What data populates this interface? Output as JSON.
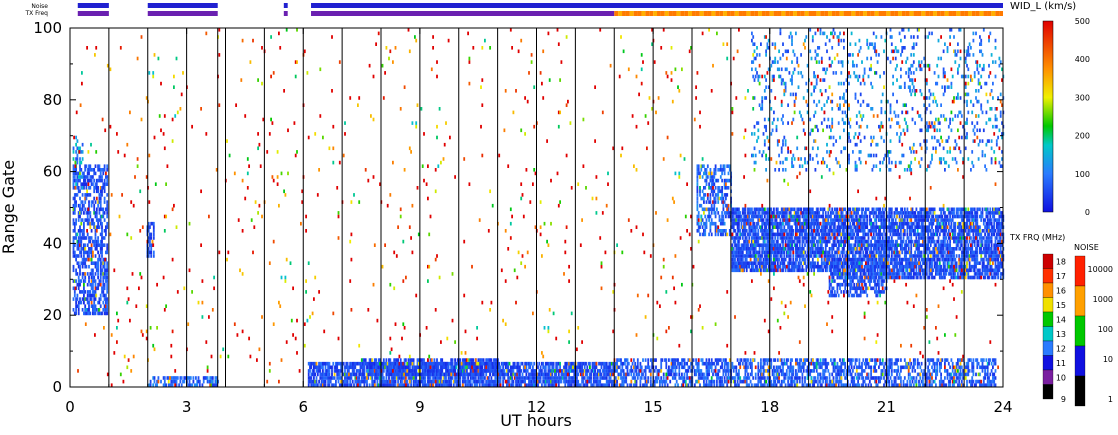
{
  "chart_data": {
    "type": "heatmap",
    "parameter": "WID_L (km/s)",
    "xlabel": "UT hours",
    "ylabel": "Range Gate",
    "xlim": [
      0,
      24
    ],
    "ylim": [
      0,
      100
    ],
    "x_ticks": [
      "0",
      "3",
      "6",
      "9",
      "12",
      "15",
      "18",
      "21",
      "24"
    ],
    "y_ticks": [
      "0",
      "20",
      "40",
      "60",
      "80",
      "100"
    ],
    "scan_boundaries_ut": [
      1.0,
      2.0,
      3.0,
      3.8,
      4.0,
      5.0,
      6.0,
      7.0,
      8.0,
      9.0,
      10.0,
      11.0,
      12.0,
      13.0,
      14.0,
      15.0,
      16.0,
      17.0,
      18.0,
      19.0,
      20.0,
      21.0,
      22.0,
      23.0
    ],
    "top_bars": {
      "noise_label": "Noise",
      "txfreq_label": "TX Freq",
      "noise_segments": [
        [
          0.2,
          1.0
        ],
        [
          2.0,
          3.8
        ],
        [
          5.5,
          5.6
        ],
        [
          6.2,
          24.0
        ]
      ],
      "txfreq_segments": [
        [
          0.2,
          1.0
        ],
        [
          2.0,
          3.8
        ],
        [
          5.5,
          5.6
        ],
        [
          6.2,
          14.0
        ]
      ],
      "txfreq_high_segment": [
        14.0,
        24.0
      ]
    },
    "width_colorbar": {
      "min": 0,
      "max": 500,
      "ticks": [
        "0",
        "100",
        "200",
        "300",
        "400",
        "500"
      ]
    },
    "txfreq_colorbar": {
      "label": "TX FRQ (MHz)",
      "ticks": [
        "9",
        "10",
        "11",
        "12",
        "13",
        "14",
        "15",
        "16",
        "17",
        "18"
      ],
      "colors": [
        "#000000",
        "#7a1fa0",
        "#1010e0",
        "#2a7bff",
        "#00c8c8",
        "#00c800",
        "#f0e000",
        "#ff9000",
        "#ff3000",
        "#cc0000"
      ]
    },
    "noise_colorbar": {
      "label": "NOISE",
      "ticks": [
        "1",
        "10",
        "100",
        "1000",
        "10000"
      ],
      "colors": [
        "#000000",
        "#1010e0",
        "#00c800",
        "#ffa000",
        "#ff2000"
      ]
    },
    "scatter_regions": [
      {
        "x": [
          0.05,
          0.95
        ],
        "y": [
          20,
          62
        ],
        "value": 60,
        "density": 0.55
      },
      {
        "x": [
          0.05,
          0.3
        ],
        "y": [
          55,
          70
        ],
        "value": 120,
        "density": 0.3
      },
      {
        "x": [
          1.95,
          2.15
        ],
        "y": [
          36,
          46
        ],
        "value": 60,
        "density": 0.7
      },
      {
        "x": [
          2.0,
          3.8
        ],
        "y": [
          0,
          3
        ],
        "value": 80,
        "density": 0.55
      },
      {
        "x": [
          6.1,
          14.0
        ],
        "y": [
          0,
          7
        ],
        "value": 60,
        "density": 0.8
      },
      {
        "x": [
          7.5,
          11.0
        ],
        "y": [
          3,
          8
        ],
        "value": 50,
        "density": 0.7
      },
      {
        "x": [
          14.0,
          23.8
        ],
        "y": [
          0,
          8
        ],
        "value": 70,
        "density": 0.55
      },
      {
        "x": [
          16.1,
          17.0
        ],
        "y": [
          42,
          62
        ],
        "value": 80,
        "density": 0.45
      },
      {
        "x": [
          17.0,
          19.5
        ],
        "y": [
          32,
          50
        ],
        "value": 60,
        "density": 0.8
      },
      {
        "x": [
          19.5,
          24.0
        ],
        "y": [
          30,
          50
        ],
        "value": 60,
        "density": 0.75
      },
      {
        "x": [
          19.5,
          21.0
        ],
        "y": [
          25,
          36
        ],
        "value": 60,
        "density": 0.5
      },
      {
        "x": [
          17.5,
          24.0
        ],
        "y": [
          60,
          100
        ],
        "value": 100,
        "density": 0.12
      },
      {
        "x": [
          0.0,
          24.0
        ],
        "y": [
          0,
          100
        ],
        "value": 450,
        "density": 0.015
      }
    ]
  }
}
